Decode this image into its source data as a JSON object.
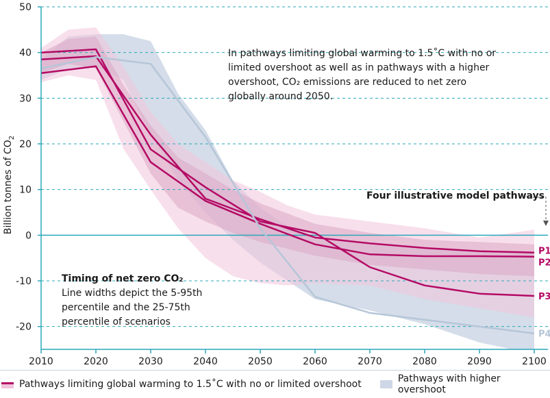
{
  "chart_data": {
    "type": "line",
    "ylabel": "Billion tonnes of CO",
    "ylabel_sub": "2",
    "xlim": [
      2010,
      2100
    ],
    "ylim": [
      -25,
      50
    ],
    "x_ticks": [
      2010,
      2020,
      2030,
      2040,
      2050,
      2060,
      2070,
      2080,
      2090,
      2100
    ],
    "y_ticks": [
      50,
      40,
      30,
      20,
      10,
      0,
      -10,
      -20
    ],
    "y_tick_labels": [
      "50",
      "40",
      "30",
      "20",
      "10",
      "0",
      "-10",
      "-20"
    ],
    "grid": "dashed horizontal",
    "series": [
      {
        "name": "P1",
        "color": "#b40a64",
        "x": [
          2010,
          2020,
          2030,
          2040,
          2050,
          2060,
          2070,
          2080,
          2090,
          2100
        ],
        "y": [
          38.5,
          39.2,
          22.0,
          8.0,
          3.5,
          -0.5,
          -1.8,
          -2.8,
          -3.5,
          -3.8
        ]
      },
      {
        "name": "P2",
        "color": "#b40a64",
        "x": [
          2010,
          2020,
          2030,
          2040,
          2050,
          2060,
          2070,
          2080,
          2090,
          2100
        ],
        "y": [
          35.5,
          37.0,
          16.0,
          7.5,
          2.5,
          -2.0,
          -4.2,
          -4.6,
          -4.6,
          -4.7
        ]
      },
      {
        "name": "P3",
        "color": "#b40a64",
        "x": [
          2010,
          2020,
          2030,
          2040,
          2050,
          2060,
          2070,
          2080,
          2090,
          2100
        ],
        "y": [
          40.0,
          40.7,
          18.8,
          10.5,
          3.0,
          0.5,
          -7.0,
          -11.0,
          -12.8,
          -13.3
        ]
      },
      {
        "name": "P4",
        "color": "#b6c6d8",
        "x": [
          2010,
          2020,
          2030,
          2040,
          2050,
          2060,
          2070,
          2080,
          2090,
          2100
        ],
        "y": [
          36.5,
          39.0,
          37.5,
          21.5,
          1.5,
          -13.5,
          -17.0,
          -18.5,
          -20.0,
          -21.5
        ]
      }
    ],
    "bands": [
      {
        "name": "Pathways with higher overshoot",
        "color": "#cdd7e5",
        "percentile": "5-95",
        "x": [
          2010,
          2015,
          2020,
          2025,
          2030,
          2035,
          2040,
          2045,
          2050,
          2055,
          2060,
          2070,
          2080,
          2090,
          2100
        ],
        "upper": [
          38.5,
          43.5,
          44.0,
          44.0,
          42.5,
          31.0,
          23.0,
          12.0,
          6.0,
          2.0,
          -1.0,
          -2.0,
          -3.0,
          -3.5,
          -4.0
        ],
        "lower": [
          34.0,
          36.5,
          37.0,
          34.0,
          22.0,
          12.0,
          5.0,
          -1.0,
          -6.0,
          -10.0,
          -14.0,
          -16.5,
          -19.5,
          -23.5,
          -26.0
        ]
      },
      {
        "name": "1.5 outer",
        "color": "#f2c4dc",
        "percentile": "5-95",
        "x": [
          2010,
          2015,
          2020,
          2025,
          2030,
          2035,
          2040,
          2045,
          2050,
          2055,
          2060,
          2070,
          2080,
          2090,
          2100
        ],
        "upper": [
          41.0,
          45.0,
          45.5,
          37.0,
          27.0,
          20.0,
          16.0,
          12.0,
          9.5,
          6.5,
          4.5,
          3.0,
          1.5,
          -0.5,
          1.2
        ],
        "lower": [
          33.5,
          35.0,
          34.0,
          19.0,
          10.0,
          1.5,
          -5.0,
          -9.0,
          -10.5,
          -11.0,
          -10.5,
          -11.0,
          -14.0,
          -16.0,
          -18.0
        ]
      },
      {
        "name": "1.5 inner",
        "color": "#dba8c4",
        "percentile": "25-75",
        "x": [
          2010,
          2015,
          2020,
          2025,
          2030,
          2035,
          2040,
          2045,
          2050,
          2060,
          2070,
          2080,
          2090,
          2100
        ],
        "upper": [
          40.0,
          43.0,
          43.5,
          33.0,
          24.0,
          17.0,
          13.5,
          10.0,
          7.0,
          2.5,
          0.5,
          -1.0,
          -1.5,
          -2.0
        ],
        "lower": [
          35.5,
          37.5,
          36.5,
          25.0,
          13.5,
          6.0,
          3.0,
          0.5,
          -1.5,
          -4.5,
          -6.5,
          -7.5,
          -8.5,
          -9.0
        ]
      }
    ],
    "annotations": {
      "main": "In pathways limiting global warming to 1.5˚C with no or limited overshoot as well as in pathways with a higher overshoot, CO₂ emissions are reduced to net zero globally around 2050.",
      "pathways": "Four illustrative model pathways",
      "timing_title": "Timing of net zero CO₂",
      "timing_body": "Line widths depict the 5-95th percentile and the 25-75th percentile of scenarios"
    },
    "legend": {
      "placement": "bottom",
      "items": [
        {
          "label": "Pathways limiting global warming to 1.5˚C with no or limited overshoot",
          "color": "#b40a64"
        },
        {
          "label": "Pathways with higher overshoot",
          "color": "#cdd7e5"
        }
      ]
    }
  }
}
